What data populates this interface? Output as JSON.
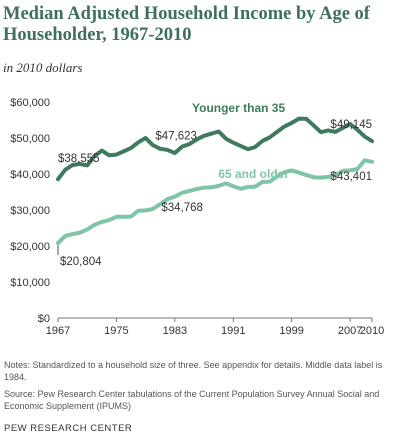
{
  "title": "Median Adjusted Household Income by Age of Householder, 1967-2010",
  "subtitle": "in 2010 dollars",
  "notes": "Notes: Standardized to a household size of three. See appendix for details. Middle data label is 1984.",
  "source": "Source: Pew Research Center tabulations of the Current Population Survey Annual Social and Economic Supplement (IPUMS)",
  "footer": "PEW RESEARCH CENTER",
  "chart_data": {
    "type": "line",
    "x_ticks": [
      "1967",
      "1975",
      "1983",
      "1991",
      "1999",
      "2007",
      "2010"
    ],
    "y_ticks": [
      "$0",
      "$10,000",
      "$20,000",
      "$30,000",
      "$40,000",
      "$50,000",
      "$60,000"
    ],
    "xlim": [
      1967,
      2010
    ],
    "ylim": [
      0,
      60000
    ],
    "grid": false,
    "x": [
      1967,
      1968,
      1969,
      1970,
      1971,
      1972,
      1973,
      1974,
      1975,
      1976,
      1977,
      1978,
      1979,
      1980,
      1981,
      1982,
      1983,
      1984,
      1985,
      1986,
      1987,
      1988,
      1989,
      1990,
      1991,
      1992,
      1993,
      1994,
      1995,
      1996,
      1997,
      1998,
      1999,
      2000,
      2001,
      2002,
      2003,
      2004,
      2005,
      2006,
      2007,
      2008,
      2009,
      2010
    ],
    "series": [
      {
        "name": "Younger than 35",
        "color": "#3f7a5f",
        "values": [
          38555,
          41200,
          42500,
          42800,
          42400,
          45000,
          46500,
          45200,
          45400,
          46300,
          47200,
          48800,
          50000,
          48000,
          47000,
          46700,
          45800,
          47623,
          48300,
          49600,
          50600,
          51200,
          51800,
          49800,
          48700,
          47800,
          46900,
          47500,
          49200,
          50200,
          51700,
          53200,
          54200,
          55400,
          55300,
          53500,
          51600,
          52100,
          51700,
          52800,
          53900,
          52300,
          50400,
          49145
        ]
      },
      {
        "name": "65 and older",
        "color": "#7fc4a6",
        "values": [
          20804,
          22800,
          23300,
          23700,
          24600,
          25900,
          26700,
          27200,
          28100,
          28100,
          28200,
          29800,
          29900,
          30300,
          31600,
          33000,
          33700,
          34768,
          35300,
          35800,
          36200,
          36300,
          36700,
          37400,
          36600,
          35900,
          36400,
          36500,
          37800,
          37900,
          39300,
          40500,
          41000,
          40400,
          39700,
          39100,
          39000,
          39200,
          39700,
          40900,
          41000,
          41400,
          43800,
          43401
        ]
      }
    ],
    "annotations": [
      {
        "series": 0,
        "x": 1967,
        "label": "$38,555"
      },
      {
        "series": 0,
        "x": 1984,
        "label": "$47,623"
      },
      {
        "series": 0,
        "x": 2010,
        "label": "$49,145"
      },
      {
        "series": 1,
        "x": 1967,
        "label": "$20,804"
      },
      {
        "series": 1,
        "x": 1984,
        "label": "$34,768"
      },
      {
        "series": 1,
        "x": 2010,
        "label": "$43,401"
      }
    ]
  }
}
